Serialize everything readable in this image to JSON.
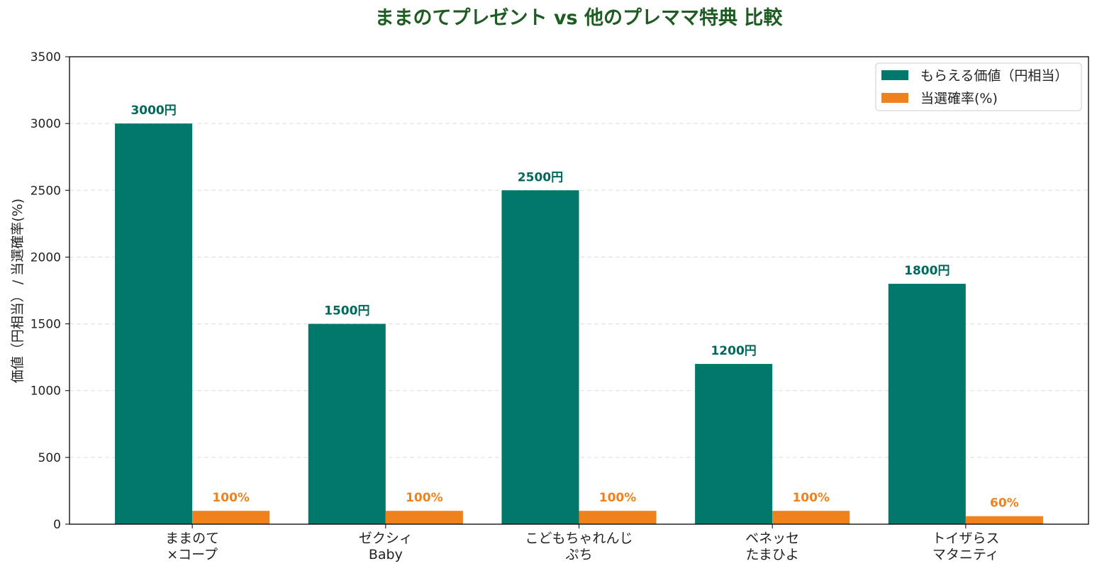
{
  "chart_data": {
    "type": "bar",
    "title": "ままのてプレゼント vs 他のプレママ特典 比較",
    "xlabel": "",
    "ylabel": "価値（円相当） / 当選確率(%)",
    "ylim": [
      0,
      3500
    ],
    "yticks": [
      "0",
      "500",
      "1000",
      "1500",
      "2000",
      "2500",
      "3000",
      "3500"
    ],
    "grid": "horizontal dashed",
    "legend_position": "top-right",
    "categories": [
      [
        "ままのて",
        "×コープ"
      ],
      [
        "ゼクシィ",
        "Baby"
      ],
      [
        "こどもちゃれんじ",
        "ぷち"
      ],
      [
        "ベネッセ",
        "たまひよ"
      ],
      [
        "トイザらス",
        "マタニティ"
      ]
    ],
    "series": [
      {
        "name": "もらえる価値（円相当）",
        "color": "#00796b",
        "values": [
          3000,
          1500,
          2500,
          1200,
          1800
        ],
        "labels": [
          "3000円",
          "1500円",
          "2500円",
          "1200円",
          "1800円"
        ]
      },
      {
        "name": "当選確率(%)",
        "color": "#f0821e",
        "values": [
          100,
          100,
          100,
          100,
          60
        ],
        "labels": [
          "100%",
          "100%",
          "100%",
          "100%",
          "60%"
        ]
      }
    ]
  }
}
